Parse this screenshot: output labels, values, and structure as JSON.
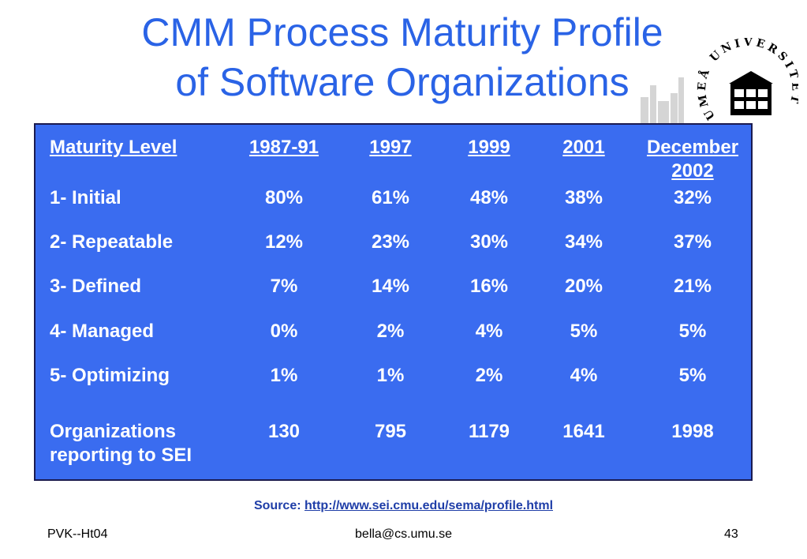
{
  "title_line1": "CMM Process Maturity Profile",
  "title_line2": "of Software Organizations",
  "seal": {
    "text": "UMEÅ UNIVERSITET"
  },
  "table": {
    "headers": [
      "Maturity Level",
      "1987-91",
      "1997",
      "1999",
      "2001",
      "December 2002"
    ],
    "rows": [
      {
        "label": "1- Initial",
        "values": [
          "80%",
          "61%",
          "48%",
          "38%",
          "32%"
        ]
      },
      {
        "label": "2- Repeatable",
        "values": [
          "12%",
          "23%",
          "30%",
          "34%",
          "37%"
        ]
      },
      {
        "label": "3- Defined",
        "values": [
          "7%",
          "14%",
          "16%",
          "20%",
          "21%"
        ]
      },
      {
        "label": "4- Managed",
        "values": [
          "0%",
          "2%",
          "4%",
          "5%",
          "5%"
        ]
      },
      {
        "label": "5- Optimizing",
        "values": [
          "1%",
          "1%",
          "2%",
          "4%",
          "5%"
        ]
      },
      {
        "label": "Organizations reporting to SEI",
        "values": [
          "130",
          "795",
          "1179",
          "1641",
          "1998"
        ]
      }
    ]
  },
  "source": {
    "label": "Source:",
    "url": "http://www.sei.cmu.edu/sema/profile.html"
  },
  "footer": {
    "left": "PVK--Ht04",
    "center": "bella@cs.umu.se",
    "right": "43"
  }
}
